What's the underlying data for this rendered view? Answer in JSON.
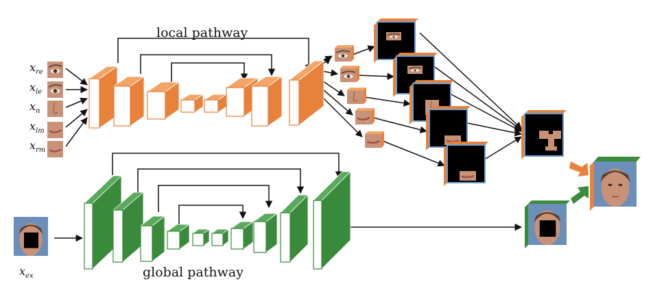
{
  "labels": {
    "local_pathway": "local pathway",
    "global_pathway": "global pathway"
  },
  "local_inputs": [
    {
      "var": "x",
      "sub": "re",
      "part": "right-eye"
    },
    {
      "var": "x",
      "sub": "le",
      "part": "left-eye"
    },
    {
      "var": "x",
      "sub": "n",
      "part": "nose"
    },
    {
      "var": "x",
      "sub": "lm",
      "part": "left-mouth"
    },
    {
      "var": "x",
      "sub": "rm",
      "part": "right-mouth"
    }
  ],
  "global_input": {
    "var": "x",
    "sub": "ex"
  },
  "colors": {
    "local": "#e8813a",
    "local_dark": "#c9651f",
    "local_light": "#f2a565",
    "global": "#3a8a3c",
    "global_dark": "#236b28",
    "global_light": "#5aaa5c",
    "skin": "#c99276",
    "hair": "#5b3d2a",
    "border_blue": "#6aa0d8"
  }
}
